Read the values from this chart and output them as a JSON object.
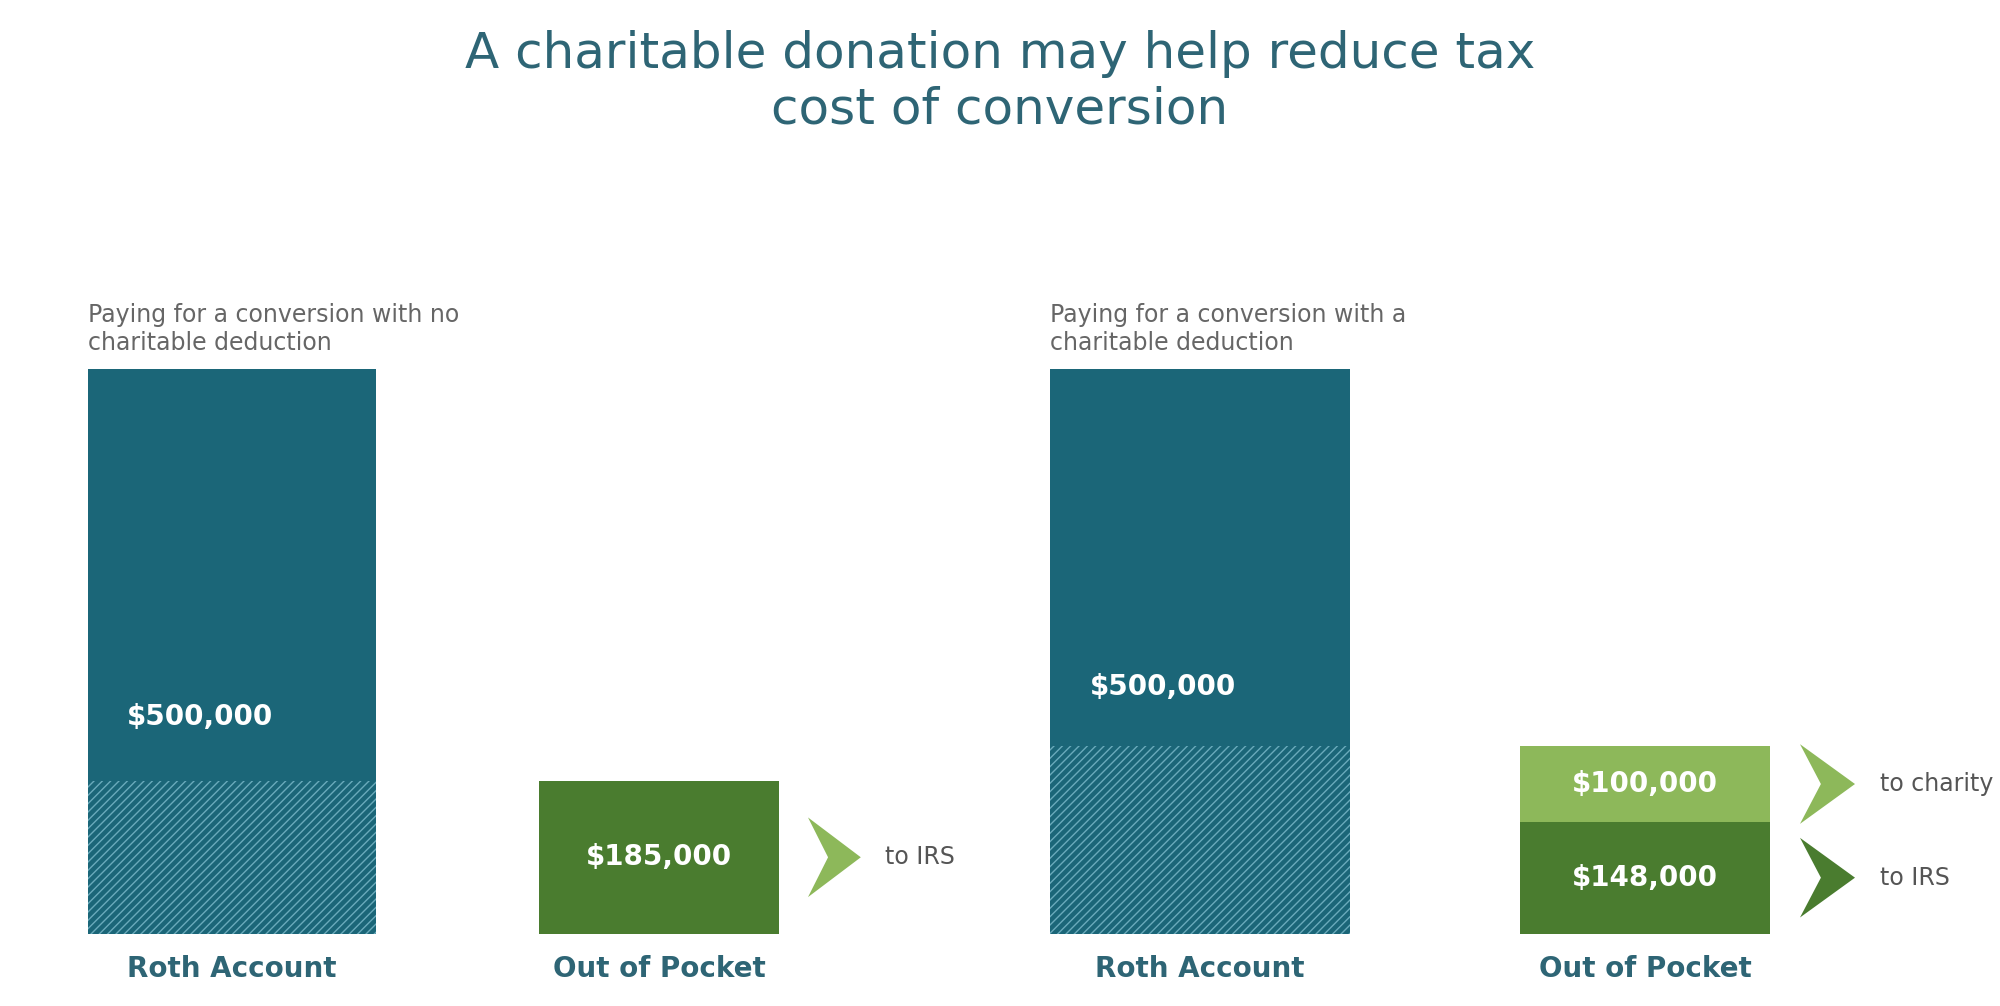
{
  "title": "A charitable donation may help reduce tax\ncost of conversion",
  "title_color": "#2e6575",
  "title_fontsize": 36,
  "background_color": "#ffffff",
  "subtitle_left": "Paying for a conversion with no\ncharitable deduction",
  "subtitle_right": "Paying for a conversion with a\ncharitable deduction",
  "subtitle_fontsize": 17,
  "subtitle_color": "#666666",
  "roth_color": "#1b6678",
  "roth_hatch_color": "#6aaabb",
  "green_dark": "#4a7c2f",
  "green_light": "#8db85a",
  "label_fontsize": 20,
  "xlabel_fontsize": 20,
  "xlabel_color": "#2e6575",
  "panel1": {
    "roth_solid": 500000,
    "roth_hatch": 185000,
    "oop_value": 185000,
    "oop_label": "$185,000",
    "roth_label": "$500,000"
  },
  "panel2": {
    "roth_solid": 500000,
    "roth_hatch": 248000,
    "oop_charity": 100000,
    "oop_irs": 148000,
    "roth_label": "$500,000",
    "oop_charity_label": "$100,000",
    "oop_irs_label": "$148,000"
  }
}
